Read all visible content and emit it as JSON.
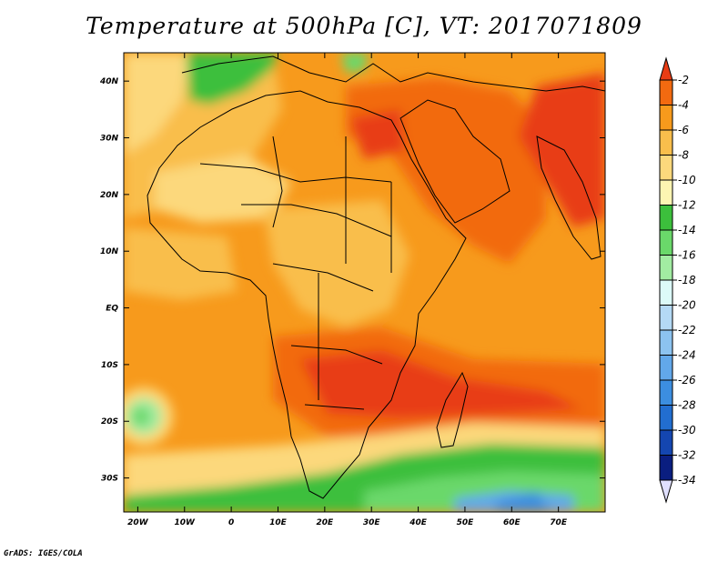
{
  "map": {
    "title": "Temperature at 500hPa [C], VT: 2017071809",
    "credit": "GrADS: IGES/COLA",
    "lon_labels": [
      "20W",
      "10W",
      "0",
      "10E",
      "20E",
      "30E",
      "40E",
      "50E",
      "60E",
      "70E"
    ],
    "lat_labels": [
      "40N",
      "30N",
      "20N",
      "10N",
      "EQ",
      "10S",
      "20S",
      "30S"
    ],
    "colorbar": {
      "labels": [
        "-2",
        "-4",
        "-6",
        "-8",
        "-10",
        "-12",
        "-14",
        "-16",
        "-18",
        "-20",
        "-22",
        "-24",
        "-26",
        "-28",
        "-30",
        "-32",
        "-34"
      ],
      "colors": [
        "#e83c14",
        "#f26a10",
        "#f79a1c",
        "#f9be4c",
        "#fcd87c",
        "#fdf5b2",
        "#3cbf3c",
        "#6ad86a",
        "#a2eca2",
        "#dcfaf8",
        "#b4d9f5",
        "#8cc3f0",
        "#62a8ea",
        "#3c8ee0",
        "#226ed0",
        "#1446b0",
        "#0a1e80",
        "#e0e0ff"
      ]
    },
    "colors": {
      "ocean_base": "#f79a1c",
      "warm_core": "#e83c14",
      "cold_band": "#3cbf3c",
      "cold_deep": "#62a8ea"
    }
  }
}
